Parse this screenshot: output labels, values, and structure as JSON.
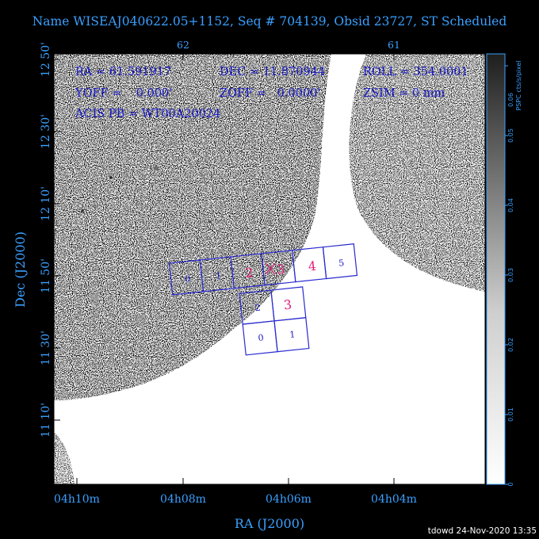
{
  "title": "Name WISEAJ040622.05+1152, Seq # 704139, Obsid 23727, ST Scheduled",
  "info": {
    "ra": "RA = 61.591917",
    "dec": "DEC = 11.870944",
    "roll": "ROLL = 354.0001",
    "yoff": "YOFF =    0.000'",
    "zoff": "ZOFF =   0.0000'",
    "zsim": "ZSIM = 0 mm",
    "acis_pb": "ACIS PB = WT00A20024"
  },
  "axes": {
    "xlabel": "RA (J2000)",
    "ylabel": "Dec (J2000)",
    "x_ticks": [
      "04h10m",
      "04h08m",
      "04h06m",
      "04h04m"
    ],
    "y_ticks": [
      "12 50'",
      "12 30'",
      "12 10'",
      "11 50'",
      "11 30'",
      "11 10'"
    ],
    "top_ticks": [
      "62",
      "61"
    ]
  },
  "colorbar": {
    "label": "PSPC cts/s/pixel",
    "ticks": [
      "0",
      "0.01",
      "0.02",
      "0.03",
      "0.04",
      "0.05",
      "0.06"
    ]
  },
  "chips": {
    "s_array": [
      "0",
      "1",
      "2",
      "3",
      "4",
      "5"
    ],
    "i_array": [
      "2",
      "3",
      "0",
      "1"
    ]
  },
  "footer": "tdowd 24-Nov-2020 13:35",
  "colors": {
    "axis_text": "#3aa0ff",
    "chip_outline": "#2a2ad0",
    "active_chip_label": "#e0207a",
    "frame": "#000000"
  }
}
